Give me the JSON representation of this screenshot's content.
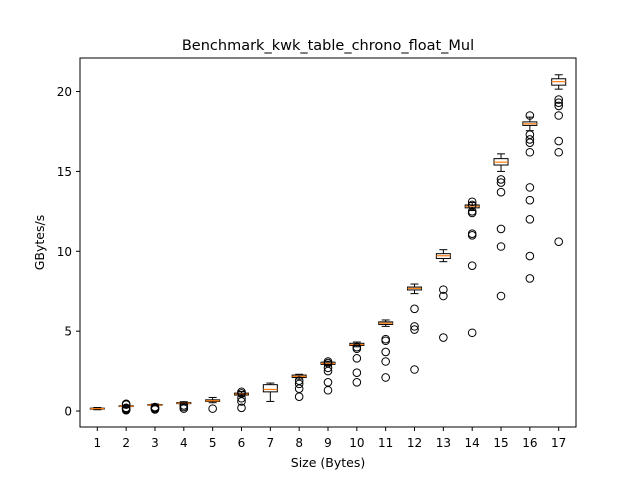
{
  "chart_data": {
    "type": "box",
    "title": "Benchmark_kwk_table_chrono_float_Mul",
    "xlabel": "Size (Bytes)",
    "ylabel": "GBytes/s",
    "ylim": [
      -1.0,
      22.1
    ],
    "yticks": [
      0,
      5,
      10,
      15,
      20
    ],
    "grid": false,
    "categories": [
      "1",
      "2",
      "3",
      "4",
      "5",
      "6",
      "7",
      "8",
      "9",
      "10",
      "11",
      "12",
      "13",
      "14",
      "15",
      "16",
      "17"
    ],
    "colors": {
      "box_edge": "#000000",
      "median": "#ff7f0e",
      "box_fill": "#ffffff"
    },
    "boxes": [
      {
        "q1": 0.12,
        "median": 0.15,
        "q3": 0.18,
        "whisker_low": 0.08,
        "whisker_high": 0.22,
        "outliers": []
      },
      {
        "q1": 0.28,
        "median": 0.3,
        "q3": 0.33,
        "whisker_low": 0.26,
        "whisker_high": 0.36,
        "outliers": [
          0.05,
          0.1,
          0.15,
          0.2,
          0.4,
          0.45
        ]
      },
      {
        "q1": 0.36,
        "median": 0.38,
        "q3": 0.41,
        "whisker_low": 0.33,
        "whisker_high": 0.44,
        "outliers": [
          0.1,
          0.15,
          0.2,
          0.25
        ]
      },
      {
        "q1": 0.46,
        "median": 0.49,
        "q3": 0.53,
        "whisker_low": 0.42,
        "whisker_high": 0.58,
        "outliers": [
          0.15,
          0.25,
          0.35
        ]
      },
      {
        "q1": 0.6,
        "median": 0.64,
        "q3": 0.7,
        "whisker_low": 0.52,
        "whisker_high": 0.85,
        "outliers": [
          0.15
        ]
      },
      {
        "q1": 1.0,
        "median": 1.06,
        "q3": 1.12,
        "whisker_low": 0.92,
        "whisker_high": 1.22,
        "outliers": [
          0.2,
          0.6,
          0.8,
          1.1,
          1.2
        ]
      },
      {
        "q1": 1.2,
        "median": 1.35,
        "q3": 1.65,
        "whisker_low": 0.6,
        "whisker_high": 1.75,
        "outliers": []
      },
      {
        "q1": 2.1,
        "median": 2.17,
        "q3": 2.25,
        "whisker_low": 2.0,
        "whisker_high": 2.3,
        "outliers": [
          0.9,
          1.4,
          1.7,
          1.9
        ]
      },
      {
        "q1": 2.92,
        "median": 2.98,
        "q3": 3.06,
        "whisker_low": 2.85,
        "whisker_high": 3.12,
        "outliers": [
          1.3,
          1.8,
          2.5,
          2.7,
          3.0,
          3.1
        ]
      },
      {
        "q1": 4.1,
        "median": 4.16,
        "q3": 4.24,
        "whisker_low": 4.02,
        "whisker_high": 4.32,
        "outliers": [
          1.8,
          2.4,
          3.3,
          3.9,
          4.0
        ]
      },
      {
        "q1": 5.42,
        "median": 5.5,
        "q3": 5.58,
        "whisker_low": 5.3,
        "whisker_high": 5.7,
        "outliers": [
          2.1,
          3.1,
          3.7,
          4.4,
          4.5
        ]
      },
      {
        "q1": 7.58,
        "median": 7.68,
        "q3": 7.76,
        "whisker_low": 7.35,
        "whisker_high": 7.95,
        "outliers": [
          2.6,
          5.1,
          5.3,
          6.4
        ]
      },
      {
        "q1": 9.55,
        "median": 9.72,
        "q3": 9.85,
        "whisker_low": 9.35,
        "whisker_high": 10.1,
        "outliers": [
          4.6,
          7.2,
          7.6
        ]
      },
      {
        "q1": 12.72,
        "median": 12.82,
        "q3": 12.9,
        "whisker_low": 12.55,
        "whisker_high": 13.05,
        "outliers": [
          4.9,
          9.1,
          11.0,
          11.1,
          12.4,
          12.5,
          12.9,
          13.1
        ]
      },
      {
        "q1": 15.4,
        "median": 15.58,
        "q3": 15.8,
        "whisker_low": 15.0,
        "whisker_high": 16.1,
        "outliers": [
          7.2,
          10.3,
          11.4,
          13.7,
          14.3,
          14.5
        ]
      },
      {
        "q1": 17.88,
        "median": 17.98,
        "q3": 18.1,
        "whisker_low": 17.55,
        "whisker_high": 18.4,
        "outliers": [
          8.3,
          9.7,
          12.0,
          13.2,
          14.0,
          16.2,
          16.8,
          17.0,
          17.3,
          18.5
        ]
      },
      {
        "q1": 20.4,
        "median": 20.62,
        "q3": 20.8,
        "whisker_low": 20.15,
        "whisker_high": 21.05,
        "outliers": [
          10.6,
          16.2,
          16.9,
          18.5,
          19.1,
          19.3,
          19.5
        ]
      }
    ]
  }
}
